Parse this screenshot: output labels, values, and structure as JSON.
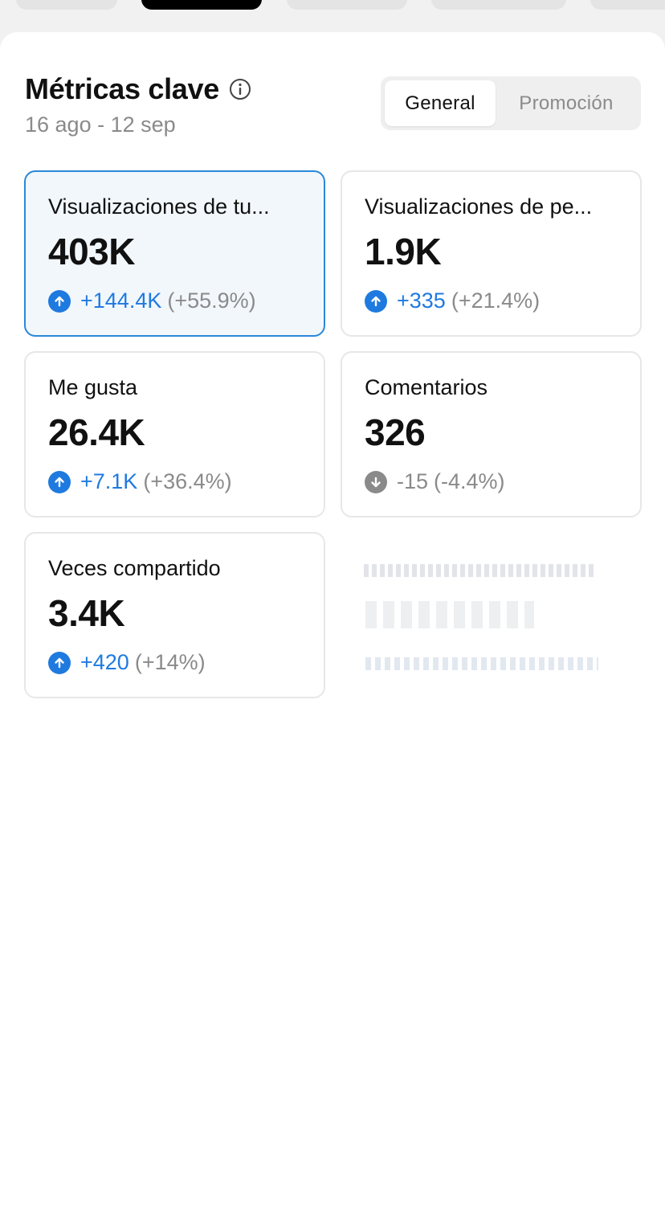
{
  "header": {
    "title": "Métricas clave",
    "date_range": "16 ago - 12 sep"
  },
  "segment": {
    "options": [
      "General",
      "Promoción"
    ],
    "selected": "General"
  },
  "colors": {
    "accent_blue": "#1f7ae0",
    "selected_border": "#2a88d8",
    "muted_gray": "#8a8a8a"
  },
  "metrics": [
    {
      "label": "Visualizaciones de tu...",
      "value": "403K",
      "delta": "+144.4K",
      "delta_pct": "(+55.9%)",
      "direction": "up",
      "icon": "arrow-up-circle-icon"
    },
    {
      "label": "Visualizaciones de pe...",
      "value": "1.9K",
      "delta": "+335",
      "delta_pct": "(+21.4%)",
      "direction": "up",
      "icon": "arrow-up-circle-icon"
    },
    {
      "label": "Me gusta",
      "value": "26.4K",
      "delta": "+7.1K",
      "delta_pct": "(+36.4%)",
      "direction": "up",
      "icon": "arrow-up-circle-icon"
    },
    {
      "label": "Comentarios",
      "value": "326",
      "delta": "-15",
      "delta_pct": "(-4.4%)",
      "direction": "down",
      "icon": "arrow-down-circle-icon"
    },
    {
      "label": "Veces compartido",
      "value": "3.4K",
      "delta": "+420",
      "delta_pct": "(+14%)",
      "direction": "up",
      "icon": "arrow-up-circle-icon"
    }
  ]
}
